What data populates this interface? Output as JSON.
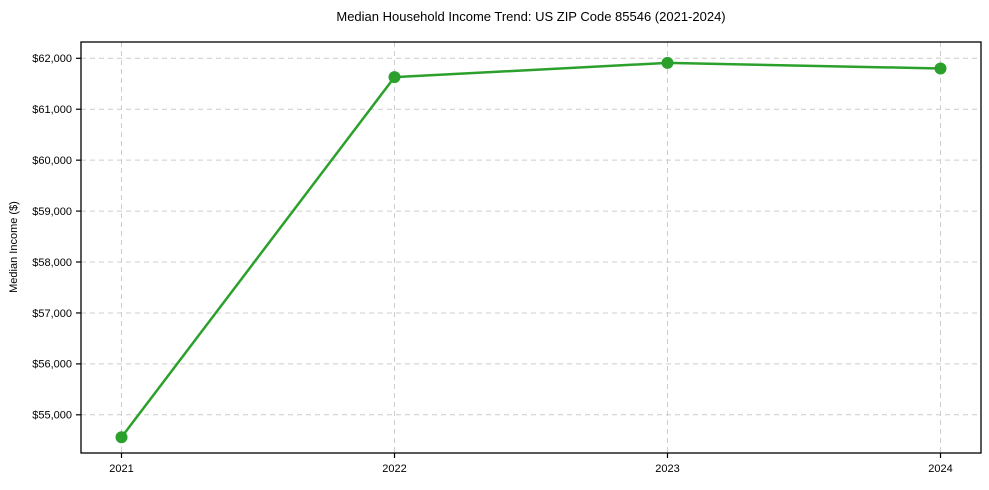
{
  "figure": {
    "background_color": "#ffffff"
  },
  "chart_data": {
    "type": "line",
    "title": "Median Household Income Trend: US ZIP Code 85546 (2021-2024)",
    "xlabel": "",
    "ylabel": "Median Income ($)",
    "x_tick_labels": [
      "2021",
      "2022",
      "2023",
      "2024"
    ],
    "x_values": [
      2021,
      2022,
      2023,
      2024
    ],
    "values": [
      54560,
      61630,
      61910,
      61800
    ],
    "y_ticks": [
      55000,
      56000,
      57000,
      58000,
      59000,
      60000,
      61000,
      62000
    ],
    "y_tick_labels": [
      "$55,000",
      "$56,000",
      "$57,000",
      "$58,000",
      "$59,000",
      "$60,000",
      "$61,000",
      "$62,000"
    ],
    "ylim": [
      54250,
      62320
    ],
    "grid": {
      "show": true,
      "style": "dashed",
      "color": "#cccccc"
    },
    "line_color": "#2ca02c",
    "marker": "circle",
    "marker_color": "#2ca02c",
    "axis_color": "#000000",
    "legend_position": "none"
  }
}
